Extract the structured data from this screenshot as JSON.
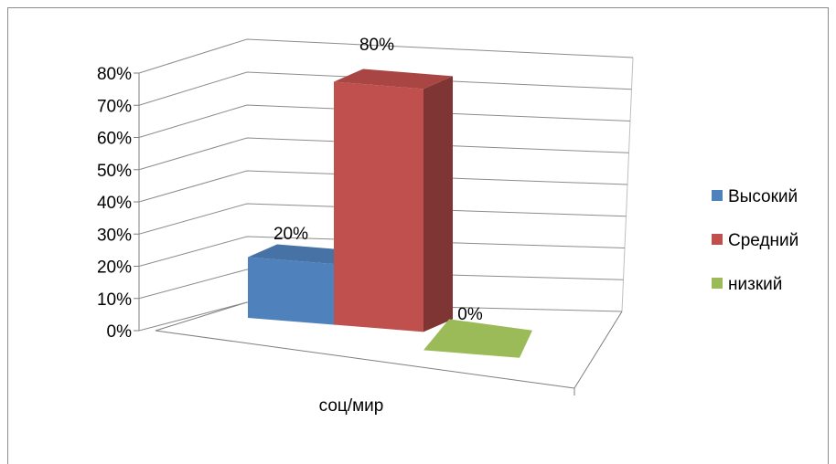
{
  "chart_data": {
    "type": "bar",
    "categories": [
      "соц/мир"
    ],
    "series": [
      {
        "name": "Высокий",
        "values": [
          20
        ],
        "label": "20%",
        "color": "#4F81BD"
      },
      {
        "name": "Средний",
        "values": [
          80
        ],
        "label": "80%",
        "color": "#C0504D"
      },
      {
        "name": "низкий",
        "values": [
          0
        ],
        "label": "0%",
        "color": "#9BBB59"
      }
    ],
    "ylim": [
      0,
      80
    ],
    "y_ticks": [
      "0%",
      "10%",
      "20%",
      "30%",
      "40%",
      "50%",
      "60%",
      "70%",
      "80%"
    ],
    "grid": true,
    "legend_position": "right",
    "style": "3d-column"
  }
}
